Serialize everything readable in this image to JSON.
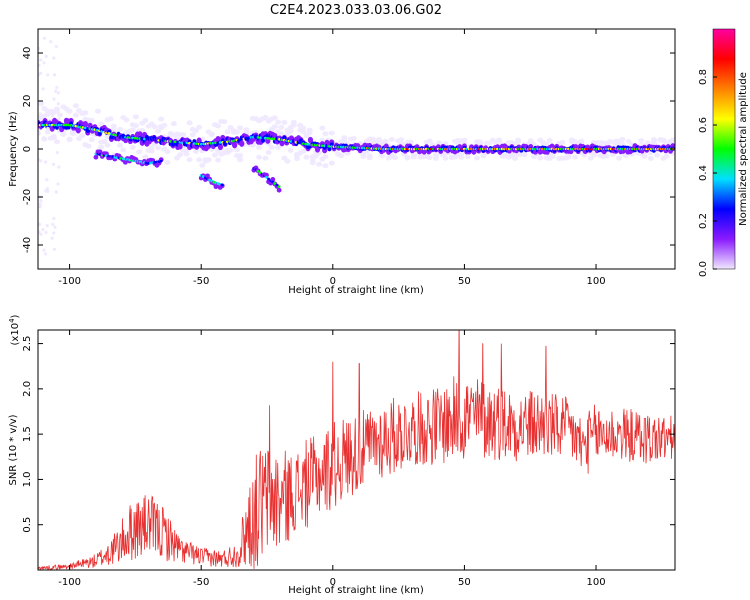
{
  "figure_title": "C2E4.2023.033.03.06.G02",
  "chart_data": [
    {
      "type": "heatmap",
      "name": "spectrogram",
      "xlabel": "Height of straight line (km)",
      "ylabel": "Frequency (Hz)",
      "xlim": [
        -112,
        130
      ],
      "ylim": [
        -50,
        50
      ],
      "xticks": [
        -100,
        -50,
        0,
        50,
        100
      ],
      "yticks": [
        -40,
        -20,
        0,
        20,
        40
      ],
      "ridge": {
        "x": [
          -112,
          -100,
          -90,
          -80,
          -70,
          -60,
          -50,
          -40,
          -30,
          -20,
          -10,
          0,
          20,
          50,
          80,
          100,
          130
        ],
        "freq_hz": [
          10,
          10,
          8,
          5,
          4,
          3,
          2,
          3,
          5,
          4,
          2,
          1,
          0,
          0,
          0,
          0,
          0
        ]
      },
      "secondary_branches": [
        {
          "x": [
            -90,
            -80,
            -70,
            -65
          ],
          "freq_hz": [
            -2,
            -4,
            -6,
            -5
          ]
        },
        {
          "x": [
            -50,
            -45,
            -42
          ],
          "freq_hz": [
            -11,
            -14,
            -15
          ]
        },
        {
          "x": [
            -30,
            -25,
            -20
          ],
          "freq_hz": [
            -8,
            -12,
            -16
          ]
        }
      ],
      "colorbar": {
        "label": "Normalized spectral amplitude",
        "range": [
          0.0,
          1.0
        ],
        "ticks": [
          0.0,
          0.2,
          0.4,
          0.6,
          0.8
        ],
        "tick_labels": [
          "0.0",
          "0.2",
          "0.4",
          "0.6",
          "0.8"
        ],
        "colors": [
          "#f0e8ff",
          "#8a1aff",
          "#0000ff",
          "#00e0ff",
          "#00ff00",
          "#ffff00",
          "#ff8000",
          "#ff0000",
          "#ff00a0"
        ]
      }
    },
    {
      "type": "line",
      "name": "snr",
      "xlabel": "Height of straight line (km)",
      "ylabel": "SNR (10 * v/v)",
      "exponent_label": "(x10",
      "exponent_power": "4",
      "exponent_close": ")",
      "xlim": [
        -112,
        130
      ],
      "ylim": [
        0,
        2.65
      ],
      "xticks": [
        -100,
        -50,
        0,
        50,
        100
      ],
      "yticks": [
        0.5,
        1.0,
        1.5,
        2.0,
        2.5
      ],
      "ytick_labels": [
        "0.5",
        "1.0",
        "1.5",
        "2.0",
        "2.5"
      ],
      "color": "#e83030",
      "envelope": {
        "x": [
          -112,
          -100,
          -90,
          -82,
          -76,
          -70,
          -64,
          -58,
          -50,
          -42,
          -36,
          -32,
          -28,
          -24,
          -20,
          -15,
          -10,
          -5,
          0,
          5,
          10,
          15,
          20,
          30,
          40,
          50,
          60,
          70,
          80,
          90,
          95,
          100,
          110,
          120,
          130
        ],
        "mean": [
          0.02,
          0.04,
          0.1,
          0.25,
          0.45,
          0.5,
          0.4,
          0.22,
          0.15,
          0.12,
          0.18,
          0.5,
          0.7,
          0.8,
          0.75,
          0.85,
          0.95,
          1.05,
          1.15,
          1.25,
          1.3,
          1.4,
          1.45,
          1.55,
          1.6,
          1.7,
          1.65,
          1.6,
          1.6,
          1.55,
          1.35,
          1.5,
          1.5,
          1.45,
          1.45
        ],
        "spread": [
          0.02,
          0.03,
          0.08,
          0.2,
          0.35,
          0.35,
          0.3,
          0.15,
          0.1,
          0.1,
          0.15,
          0.5,
          0.7,
          0.6,
          0.6,
          0.45,
          0.5,
          0.45,
          0.5,
          0.45,
          0.45,
          0.4,
          0.45,
          0.4,
          0.45,
          0.5,
          0.45,
          0.4,
          0.4,
          0.35,
          0.35,
          0.35,
          0.3,
          0.3,
          0.25
        ]
      },
      "peaks": [
        {
          "x": -24,
          "y": 1.82
        },
        {
          "x": 0,
          "y": 2.3
        },
        {
          "x": 10,
          "y": 2.28
        },
        {
          "x": 48,
          "y": 2.65
        },
        {
          "x": 57,
          "y": 2.5
        },
        {
          "x": 64,
          "y": 2.5
        },
        {
          "x": 81,
          "y": 2.47
        }
      ]
    }
  ]
}
